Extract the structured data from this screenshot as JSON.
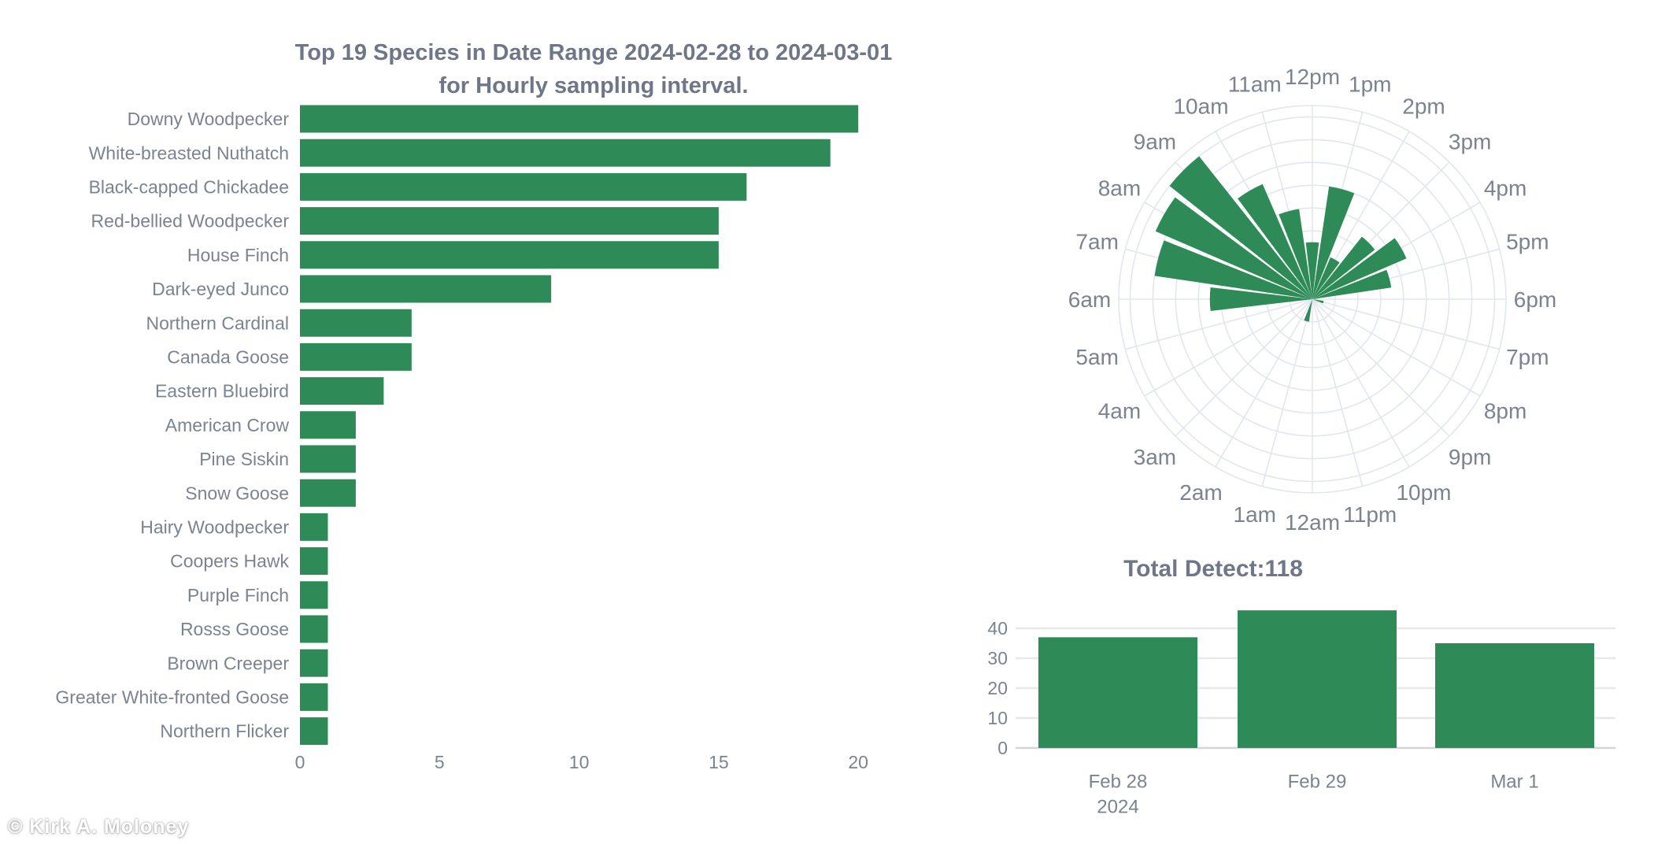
{
  "watermark": "© Kirk A. Moloney",
  "colors": {
    "bar_green": "#2e8b57",
    "label_text": "#7b8391",
    "title_text": "#6e7687",
    "rose_grid": "#e2e6ef",
    "daily_grid": "#e8e8e8",
    "zero_line": "#d6d6da"
  },
  "chart_data": [
    {
      "type": "bar",
      "orientation": "horizontal",
      "title": "Top 19 Species in Date Range 2024-02-28 to 2024-03-01",
      "subtitle": "for Hourly sampling interval.",
      "categories": [
        "Downy Woodpecker",
        "White-breasted Nuthatch",
        "Black-capped Chickadee",
        "Red-bellied Woodpecker",
        "House Finch",
        "Dark-eyed Junco",
        "Northern Cardinal",
        "Canada Goose",
        "Eastern Bluebird",
        "American Crow",
        "Pine Siskin",
        "Snow Goose",
        "Hairy Woodpecker",
        "Coopers Hawk",
        "Purple Finch",
        "Rosss Goose",
        "Brown Creeper",
        "Greater White-fronted Goose",
        "Northern Flicker"
      ],
      "values": [
        20,
        19,
        16,
        15,
        15,
        9,
        4,
        4,
        3,
        2,
        2,
        2,
        1,
        1,
        1,
        1,
        1,
        1,
        1
      ],
      "xticks": [
        0,
        5,
        10,
        15,
        20
      ],
      "xlim": [
        0,
        20.5
      ],
      "grid": false,
      "legend": "none"
    },
    {
      "type": "polar-bar",
      "description": "Detections by hour of day, 12pm at top, clockwise",
      "categories": [
        "12pm",
        "1pm",
        "2pm",
        "3pm",
        "4pm",
        "5pm",
        "6pm",
        "7pm",
        "8pm",
        "9pm",
        "10pm",
        "11pm",
        "12am",
        "1am",
        "2am",
        "3am",
        "4am",
        "5am",
        "6am",
        "7am",
        "8am",
        "9am",
        "10am",
        "11am"
      ],
      "values": [
        5,
        10,
        4,
        7,
        9,
        7,
        0,
        1,
        0,
        0,
        0,
        0,
        0,
        2,
        0,
        0,
        0,
        0,
        9,
        14,
        15,
        16,
        11,
        8
      ],
      "radial_range": [
        0,
        17
      ],
      "radial_grid_step": 2,
      "grid": true,
      "legend": "none"
    },
    {
      "type": "bar",
      "title": "Total Detect:118",
      "categories": [
        "Feb 28",
        "Feb 29",
        "Mar 1"
      ],
      "x_sub_label": "2024",
      "values": [
        37,
        46,
        35
      ],
      "yticks": [
        0,
        10,
        20,
        30,
        40
      ],
      "ylim": [
        0,
        48
      ],
      "grid": true,
      "legend": "none"
    }
  ]
}
